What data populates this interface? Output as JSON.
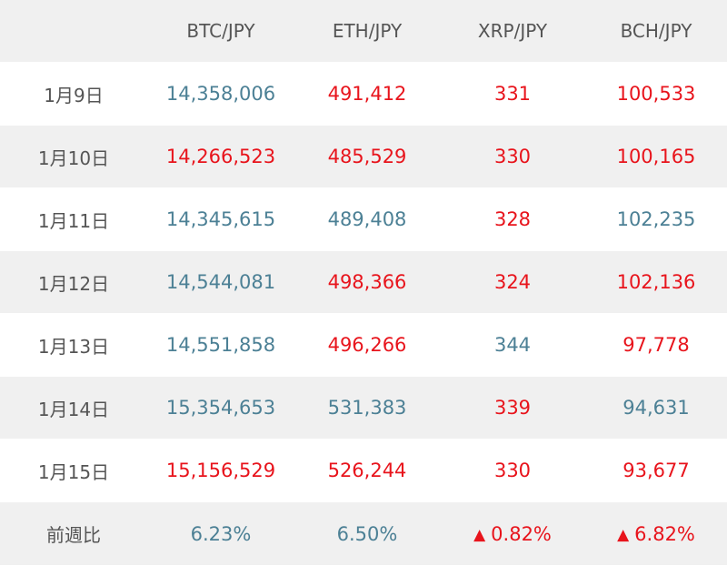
{
  "headers": [
    "",
    "BTC/JPY",
    "ETH/JPY",
    "XRP/JPY",
    "BCH/JPY"
  ],
  "colors": {
    "up": "#e8141c",
    "down": "#4c8095",
    "stripe": "#f0f0f0",
    "label": "#555555"
  },
  "rows": [
    {
      "date": "1月9日",
      "cells": [
        {
          "v": "14,358,006",
          "dir": "down"
        },
        {
          "v": "491,412",
          "dir": "up"
        },
        {
          "v": "331",
          "dir": "up"
        },
        {
          "v": "100,533",
          "dir": "up"
        }
      ]
    },
    {
      "date": "1月10日",
      "cells": [
        {
          "v": "14,266,523",
          "dir": "up"
        },
        {
          "v": "485,529",
          "dir": "up"
        },
        {
          "v": "330",
          "dir": "up"
        },
        {
          "v": "100,165",
          "dir": "up"
        }
      ]
    },
    {
      "date": "1月11日",
      "cells": [
        {
          "v": "14,345,615",
          "dir": "down"
        },
        {
          "v": "489,408",
          "dir": "down"
        },
        {
          "v": "328",
          "dir": "up"
        },
        {
          "v": "102,235",
          "dir": "down"
        }
      ]
    },
    {
      "date": "1月12日",
      "cells": [
        {
          "v": "14,544,081",
          "dir": "down"
        },
        {
          "v": "498,366",
          "dir": "up"
        },
        {
          "v": "324",
          "dir": "up"
        },
        {
          "v": "102,136",
          "dir": "up"
        }
      ]
    },
    {
      "date": "1月13日",
      "cells": [
        {
          "v": "14,551,858",
          "dir": "down"
        },
        {
          "v": "496,266",
          "dir": "up"
        },
        {
          "v": "344",
          "dir": "down"
        },
        {
          "v": "97,778",
          "dir": "up"
        }
      ]
    },
    {
      "date": "1月14日",
      "cells": [
        {
          "v": "15,354,653",
          "dir": "down"
        },
        {
          "v": "531,383",
          "dir": "down"
        },
        {
          "v": "339",
          "dir": "up"
        },
        {
          "v": "94,631",
          "dir": "down"
        }
      ]
    },
    {
      "date": "1月15日",
      "cells": [
        {
          "v": "15,156,529",
          "dir": "up"
        },
        {
          "v": "526,244",
          "dir": "up"
        },
        {
          "v": "330",
          "dir": "up"
        },
        {
          "v": "93,677",
          "dir": "up"
        }
      ]
    }
  ],
  "weekly": {
    "label": "前週比",
    "cells": [
      {
        "v": "6.23%",
        "dir": "down",
        "arrow": false
      },
      {
        "v": "6.50%",
        "dir": "down",
        "arrow": false
      },
      {
        "v": "0.82%",
        "dir": "up",
        "arrow": true
      },
      {
        "v": "6.82%",
        "dir": "up",
        "arrow": true
      }
    ]
  },
  "arrow_glyph": "▲"
}
